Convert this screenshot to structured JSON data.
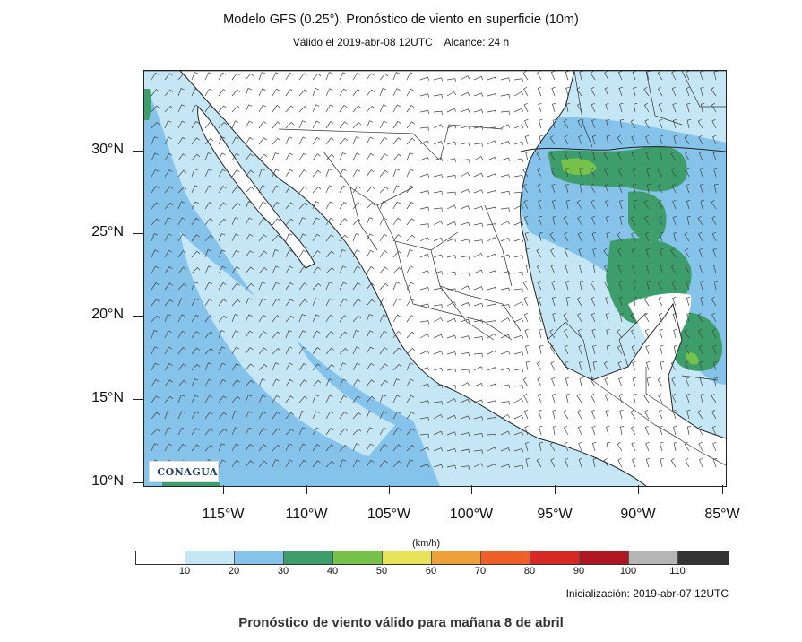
{
  "title": "Modelo GFS (0.25°). Pronóstico de viento en superficie (10m)",
  "subtitle": "Válido el 2019-abr-08 12UTC    Alcance: 24 h",
  "lat_labels": [
    "30°N",
    "25°N",
    "20°N",
    "15°N",
    "10°N"
  ],
  "lon_labels": [
    "115°W",
    "110°W",
    "105°W",
    "100°W",
    "95°W",
    "90°W",
    "85°W"
  ],
  "logo_text": "CONAGUA",
  "colorbar": {
    "unit": "(km/h)",
    "labels": [
      "10",
      "20",
      "30",
      "40",
      "50",
      "60",
      "70",
      "80",
      "90",
      "100",
      "110"
    ],
    "colors": [
      "#ffffff",
      "#c5e6f5",
      "#86c3ea",
      "#3d9e6c",
      "#77c24a",
      "#e8e45a",
      "#f0a03a",
      "#ef6028",
      "#d72a27",
      "#b01622",
      "#b5b5b5",
      "#333333"
    ]
  },
  "initialization": "Inicialización: 2019-abr-07 12UTC",
  "caption": "Pronóstico de viento válido para mañana 8 de abril"
}
